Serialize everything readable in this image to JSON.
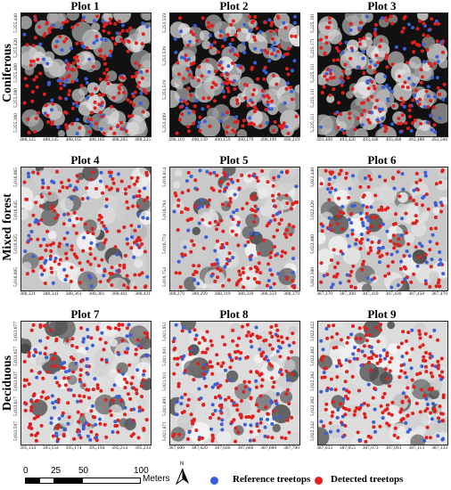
{
  "rows": [
    {
      "label": "Coniferous",
      "style": "dark"
    },
    {
      "label": "Mixed forest",
      "style": "medium"
    },
    {
      "label": "Deciduous",
      "style": "light"
    }
  ],
  "plots": [
    {
      "title": "Plot 1",
      "x_ticks": [
        "488,125",
        "488,145",
        "488,165",
        "488,185",
        "488,205",
        "488,225"
      ],
      "y_ticks": [
        "5,255,360",
        "5,255,380",
        "5,255,400",
        "5,255,420",
        "5,255,440"
      ]
    },
    {
      "title": "Plot 2",
      "x_ticks": [
        "490,119",
        "490,139",
        "490,159",
        "490,179",
        "490,199",
        "490,219"
      ],
      "y_ticks": [
        "5,253,499",
        "5,253,519",
        "5,253,539",
        "5,253,559"
      ]
    },
    {
      "title": "Plot 3",
      "x_ticks": [
        "493,408",
        "493,428",
        "493,448",
        "493,468",
        "493,488",
        "493,508"
      ],
      "y_ticks": [
        "5,225,111",
        "5,225,131",
        "5,225,151",
        "5,225,171",
        "5,225,191"
      ]
    },
    {
      "title": "Plot 4",
      "x_ticks": [
        "388,321",
        "388,341",
        "388,361",
        "388,381",
        "388,401",
        "388,421"
      ],
      "y_ticks": [
        "5,016,605",
        "5,016,625",
        "5,016,645",
        "5,016,665"
      ]
    },
    {
      "title": "Plot 5",
      "x_ticks": [
        "388,279",
        "388,299",
        "388,319",
        "388,339",
        "388,359",
        "388,379"
      ],
      "y_ticks": [
        "5,016,754",
        "5,016,774",
        "5,016,794",
        "5,016,814"
      ]
    },
    {
      "title": "Plot 6",
      "x_ticks": [
        "387,370",
        "387,390",
        "387,410",
        "387,430",
        "387,450",
        "387,470"
      ],
      "y_ticks": [
        "5,022,380",
        "5,022,400",
        "5,022,420",
        "5,022,440"
      ]
    },
    {
      "title": "Plot 7",
      "x_ticks": [
        "395,134",
        "395,154",
        "395,174",
        "395,194",
        "395,214",
        "395,234"
      ],
      "y_ticks": [
        "5,033,597",
        "5,033,617",
        "5,033,637",
        "5,033,657",
        "5,033,677"
      ]
    },
    {
      "title": "Plot 8",
      "x_ticks": [
        "387,600",
        "387,620",
        "387,640",
        "387,660",
        "387,680",
        "387,700"
      ],
      "y_ticks": [
        "5,021,871",
        "5,021,891",
        "5,021,911",
        "5,021,931",
        "5,021,951"
      ]
    },
    {
      "title": "Plot 9",
      "x_ticks": [
        "387,033",
        "387,053",
        "387,073",
        "387,093",
        "387,113",
        "387,133"
      ],
      "y_ticks": [
        "5,022,342",
        "5,022,362",
        "5,022,382",
        "5,022,402",
        "5,022,422"
      ]
    }
  ],
  "scale_bar": {
    "ticks": [
      "0",
      "25",
      "50",
      "100"
    ],
    "unit": "Meters"
  },
  "north_arrow": {
    "label": "N"
  },
  "legend": [
    {
      "label": "Reference treetops",
      "color": "#3a5fd6"
    },
    {
      "label": "Detected treetops",
      "color": "#e0201d"
    }
  ]
}
